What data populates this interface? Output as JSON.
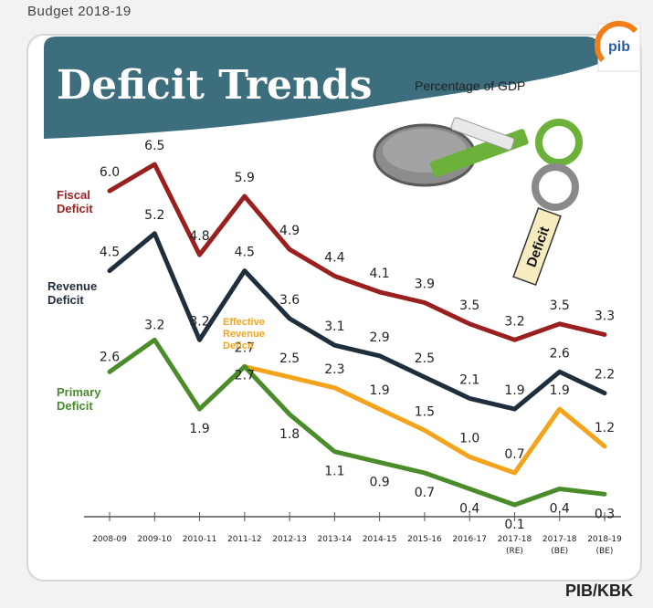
{
  "header": "Budget 2018-19",
  "credit": "PIB/KBK",
  "chart_data": {
    "type": "line",
    "title": "Deficit Trends",
    "subtitle": "Percentage of GDP",
    "badge": "Deficit",
    "categories": [
      "2008-09",
      "2009-10",
      "2010-11",
      "2011-12",
      "2012-13",
      "2013-14",
      "2014-15",
      "2015-16",
      "2016-17",
      "2017-18 (RE)",
      "2017-18 (BE)",
      "2018-19 (BE)"
    ],
    "series": [
      {
        "name": "Fiscal Deficit",
        "color": "#9a1f1f",
        "label_color": "#9a1f1f",
        "values": [
          6.0,
          6.5,
          4.8,
          5.9,
          4.9,
          4.4,
          4.1,
          3.9,
          3.5,
          3.2,
          3.5,
          3.3
        ]
      },
      {
        "name": "Revenue Deficit",
        "color": "#1f2e3c",
        "label_color": "#1f2e3c",
        "values": [
          4.5,
          5.2,
          3.2,
          4.5,
          3.6,
          3.1,
          2.9,
          2.5,
          2.1,
          1.9,
          2.6,
          2.2
        ]
      },
      {
        "name": "Effective Revenue Deficit",
        "color": "#f4a41c",
        "label_color": "#f4a41c",
        "start_index": 3,
        "values": [
          null,
          null,
          null,
          2.7,
          2.5,
          2.3,
          1.9,
          1.5,
          1.0,
          0.7,
          1.9,
          1.2
        ]
      },
      {
        "name": "Primary Deficit",
        "color": "#4a8c2a",
        "label_color": "#4a8c2a",
        "values": [
          2.6,
          3.2,
          1.9,
          2.7,
          1.8,
          1.1,
          0.9,
          0.7,
          0.4,
          0.1,
          0.4,
          0.3
        ]
      }
    ]
  }
}
